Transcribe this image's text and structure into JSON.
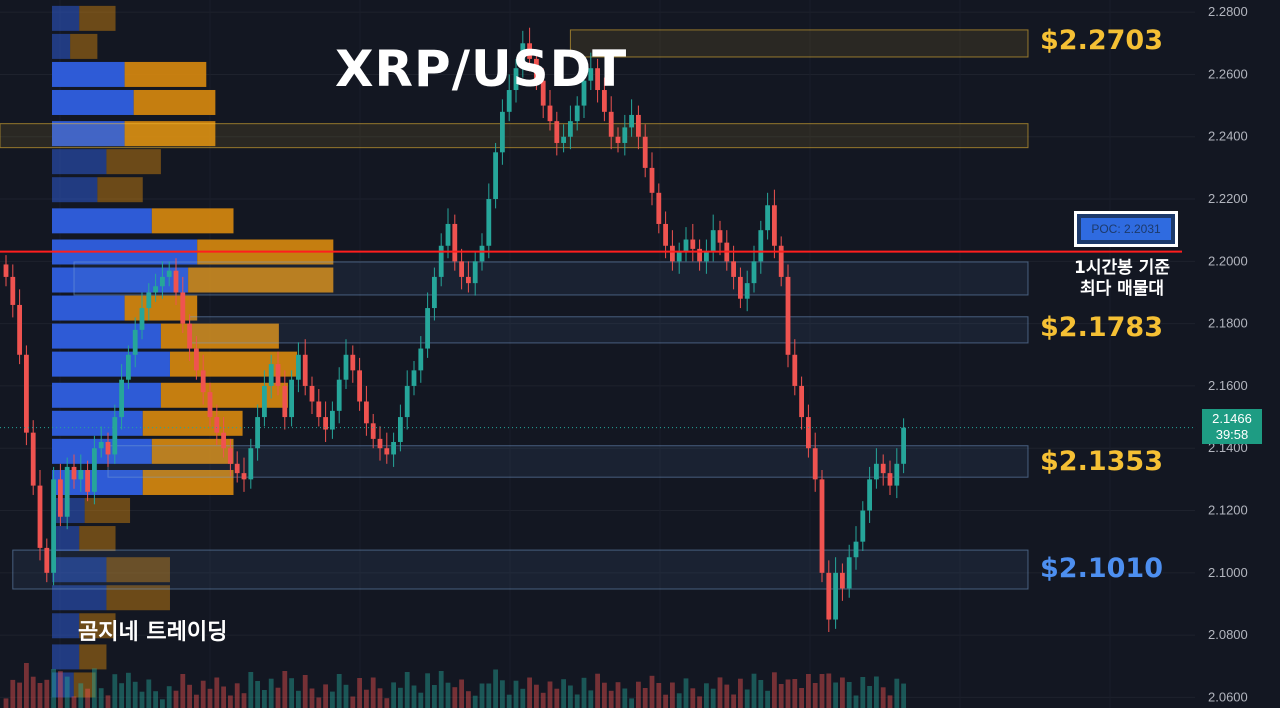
{
  "chart_data": {
    "type": "candlestick",
    "title": "XRP/USDT",
    "ylim": [
      2.0566,
      2.2839
    ],
    "y_ticks": [
      "2.2800",
      "2.2600",
      "2.2400",
      "2.2200",
      "2.2000",
      "2.1800",
      "2.1600",
      "2.1400",
      "2.1200",
      "2.1000",
      "2.0800",
      "2.0600"
    ],
    "current_price": "2.1466",
    "countdown": "39:58",
    "poc": {
      "label": "POC: 2.2031",
      "value": 2.2031,
      "note_line1": "1시간봉 기준",
      "note_line2": "최다 매물대"
    },
    "levels": [
      {
        "label": "$2.2703",
        "value": 2.2703,
        "color": "#f5c034"
      },
      {
        "label": "$2.1783",
        "value": 2.1783,
        "color": "#f5c034"
      },
      {
        "label": "$2.1353",
        "value": 2.1353,
        "color": "#f5c034"
      },
      {
        "label": "$2.1010",
        "value": 2.101,
        "color": "#4d8ff0"
      }
    ],
    "candle_closes": [
      2.195,
      2.186,
      2.17,
      2.145,
      2.128,
      2.108,
      2.1,
      2.13,
      2.118,
      2.134,
      2.13,
      2.133,
      2.126,
      2.14,
      2.142,
      2.138,
      2.15,
      2.162,
      2.17,
      2.178,
      2.185,
      2.19,
      2.192,
      2.195,
      2.197,
      2.19,
      2.18,
      2.172,
      2.165,
      2.158,
      2.15,
      2.145,
      2.14,
      2.135,
      2.132,
      2.13,
      2.14,
      2.15,
      2.16,
      2.167,
      2.16,
      2.15,
      2.162,
      2.17,
      2.16,
      2.155,
      2.15,
      2.146,
      2.152,
      2.162,
      2.17,
      2.165,
      2.155,
      2.148,
      2.143,
      2.14,
      2.138,
      2.142,
      2.15,
      2.16,
      2.165,
      2.172,
      2.185,
      2.195,
      2.205,
      2.212,
      2.2,
      2.195,
      2.193,
      2.2,
      2.205,
      2.22,
      2.235,
      2.248,
      2.255,
      2.262,
      2.27,
      2.265,
      2.258,
      2.25,
      2.245,
      2.238,
      2.24,
      2.245,
      2.25,
      2.258,
      2.262,
      2.255,
      2.248,
      2.24,
      2.238,
      2.243,
      2.247,
      2.24,
      2.23,
      2.222,
      2.212,
      2.205,
      2.2,
      2.203,
      2.207,
      2.204,
      2.2,
      2.203,
      2.21,
      2.206,
      2.2,
      2.195,
      2.188,
      2.193,
      2.2,
      2.21,
      2.218,
      2.205,
      2.195,
      2.17,
      2.16,
      2.15,
      2.14,
      2.13,
      2.1,
      2.085,
      2.1,
      2.095,
      2.105,
      2.11,
      2.12,
      2.13,
      2.135,
      2.132,
      2.128,
      2.135,
      2.1466
    ],
    "volume_profile_rows": [
      {
        "price": 2.278,
        "buy": 0.15,
        "sell": 0.2
      },
      {
        "price": 2.269,
        "buy": 0.1,
        "sell": 0.15
      },
      {
        "price": 2.26,
        "buy": 0.4,
        "sell": 0.45
      },
      {
        "price": 2.251,
        "buy": 0.45,
        "sell": 0.45
      },
      {
        "price": 2.241,
        "buy": 0.4,
        "sell": 0.5
      },
      {
        "price": 2.232,
        "buy": 0.3,
        "sell": 0.3
      },
      {
        "price": 2.223,
        "buy": 0.25,
        "sell": 0.25
      },
      {
        "price": 2.213,
        "buy": 0.55,
        "sell": 0.45
      },
      {
        "price": 2.203,
        "buy": 0.8,
        "sell": 0.75
      },
      {
        "price": 2.194,
        "buy": 0.75,
        "sell": 0.8
      },
      {
        "price": 2.185,
        "buy": 0.4,
        "sell": 0.4
      },
      {
        "price": 2.176,
        "buy": 0.6,
        "sell": 0.65
      },
      {
        "price": 2.167,
        "buy": 0.65,
        "sell": 0.7
      },
      {
        "price": 2.157,
        "buy": 0.6,
        "sell": 0.7
      },
      {
        "price": 2.148,
        "buy": 0.5,
        "sell": 0.55
      },
      {
        "price": 2.139,
        "buy": 0.55,
        "sell": 0.45
      },
      {
        "price": 2.129,
        "buy": 0.5,
        "sell": 0.5
      },
      {
        "price": 2.12,
        "buy": 0.18,
        "sell": 0.25
      },
      {
        "price": 2.111,
        "buy": 0.15,
        "sell": 0.2
      },
      {
        "price": 2.101,
        "buy": 0.3,
        "sell": 0.35
      },
      {
        "price": 2.092,
        "buy": 0.3,
        "sell": 0.35
      },
      {
        "price": 2.083,
        "buy": 0.15,
        "sell": 0.2
      },
      {
        "price": 2.073,
        "buy": 0.15,
        "sell": 0.15
      },
      {
        "price": 2.064,
        "buy": 0.12,
        "sell": 0.12
      }
    ],
    "zones": [
      {
        "y0": 2.2743,
        "y1": 2.2656,
        "from_candle": 83,
        "color": "yellow"
      },
      {
        "y0": 2.2442,
        "y1": 2.2365,
        "from_candle": -5,
        "color": "yellow"
      },
      {
        "y0": 2.1998,
        "y1": 2.1892,
        "from_candle": 10,
        "color": "blue"
      },
      {
        "y0": 2.1822,
        "y1": 2.1738,
        "from_candle": 27,
        "color": "blue"
      },
      {
        "y0": 2.1408,
        "y1": 2.1307,
        "from_candle": 15,
        "color": "blue"
      },
      {
        "y0": 2.1073,
        "y1": 2.0948,
        "from_candle": 1,
        "color": "blue"
      }
    ],
    "colors": {
      "up": "#26a69a",
      "down": "#ef5350",
      "poc": "#ff1e1e",
      "buy": "#2f5fe0",
      "sell": "#d98a0e",
      "background": "#131722"
    },
    "watermark": "곰지네 트레이딩"
  }
}
